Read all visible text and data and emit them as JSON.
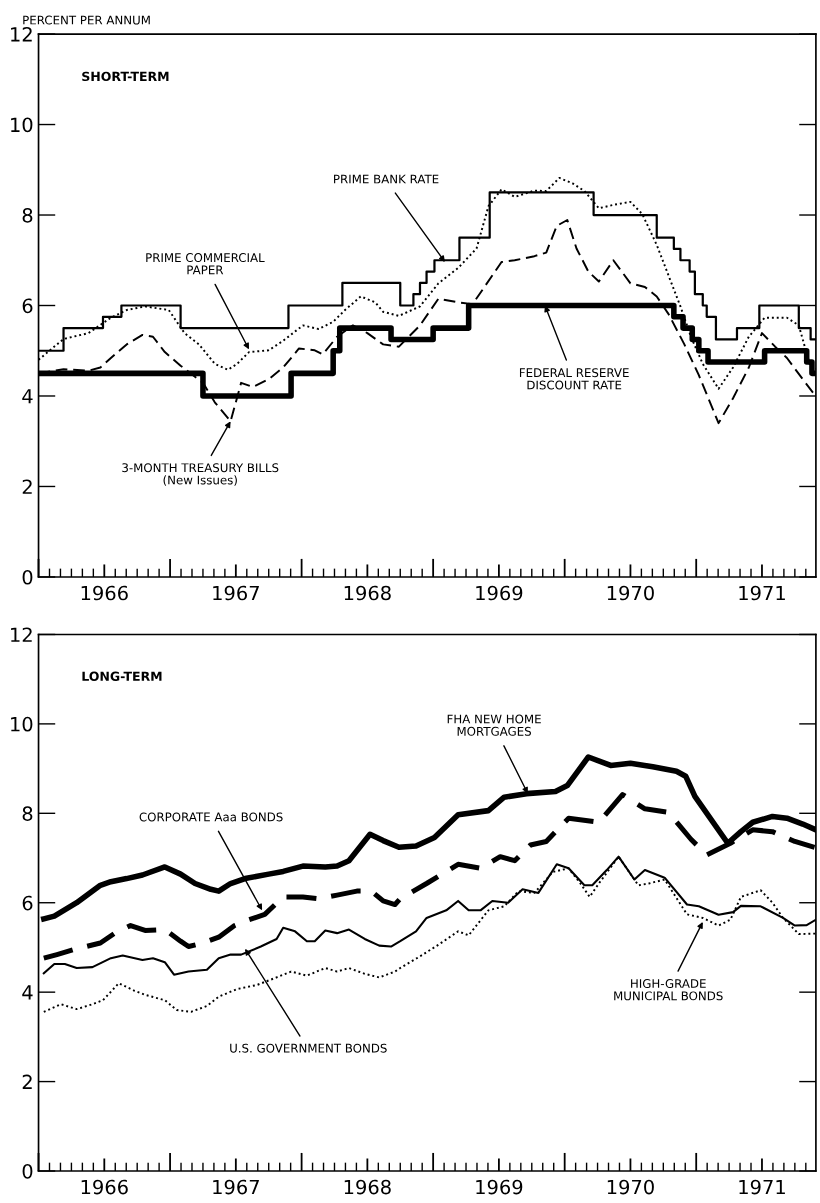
{
  "chart_data": [
    {
      "type": "line",
      "title": "SHORT-TERM",
      "ylabel": "PERCENT PER ANNUM",
      "xlim": [
        1966.0,
        1971.91
      ],
      "ylim": [
        0,
        12
      ],
      "yticks": [
        0,
        2,
        4,
        6,
        8,
        10,
        12
      ],
      "xticks": [
        {
          "value": 1966.5,
          "label": "1966"
        },
        {
          "value": 1967.5,
          "label": "1967"
        },
        {
          "value": 1968.5,
          "label": "1968"
        },
        {
          "value": 1969.5,
          "label": "1969"
        },
        {
          "value": 1970.5,
          "label": "1970"
        },
        {
          "value": 1971.5,
          "label": "1971"
        }
      ],
      "grid": false,
      "legend": false,
      "series": [
        {
          "type": "step",
          "color": "#000000",
          "line_style": "solid",
          "x": [
            1966.0,
            1966.19,
            1966.49,
            1966.63,
            1967.08,
            1967.9,
            1968.31,
            1968.75,
            1968.85,
            1968.9,
            1968.95,
            1969.01,
            1969.2,
            1969.43,
            1970.22,
            1970.7,
            1970.83,
            1970.88,
            1970.95,
            1970.99,
            1971.05,
            1971.08,
            1971.15,
            1971.31,
            1971.48,
            1971.78,
            1971.87,
            1971.91
          ],
          "values": [
            5.0,
            5.5,
            5.75,
            6.0,
            5.5,
            6.0,
            6.5,
            6.0,
            6.25,
            6.5,
            6.75,
            7.0,
            7.5,
            8.5,
            8.0,
            7.5,
            7.25,
            7.0,
            6.75,
            6.25,
            6.0,
            5.75,
            5.25,
            5.5,
            6.0,
            5.5,
            5.25,
            5.25
          ]
        },
        {
          "type": "step",
          "color": "#000000",
          "line_style": "solid",
          "x": [
            1966.0,
            1967.25,
            1967.92,
            1968.24,
            1968.29,
            1968.68,
            1969.0,
            1969.27,
            1970.83,
            1970.9,
            1970.97,
            1971.02,
            1971.09,
            1971.52,
            1971.84,
            1971.88,
            1971.91
          ],
          "values": [
            4.5,
            4.0,
            4.5,
            5.0,
            5.5,
            5.25,
            5.5,
            6.0,
            5.75,
            5.5,
            5.25,
            5.0,
            4.75,
            5.0,
            4.75,
            4.5,
            4.5
          ]
        },
        {
          "color": "#000000",
          "line_style": "dotted",
          "x": [
            1966.0,
            1966.19,
            1966.38,
            1966.55,
            1966.67,
            1966.81,
            1966.99,
            1967.11,
            1967.22,
            1967.34,
            1967.44,
            1967.51,
            1967.6,
            1967.75,
            1967.86,
            1968.01,
            1968.13,
            1968.24,
            1968.33,
            1968.45,
            1968.56,
            1968.62,
            1968.74,
            1968.9,
            1969.04,
            1969.19,
            1969.33,
            1969.42,
            1969.52,
            1969.62,
            1969.77,
            1969.86,
            1969.96,
            1970.06,
            1970.15,
            1970.26,
            1970.38,
            1970.5,
            1970.59,
            1970.7,
            1970.79,
            1970.88,
            1970.96,
            1971.05,
            1971.17,
            1971.28,
            1971.4,
            1971.52,
            1971.69,
            1971.78,
            1971.87,
            1971.91
          ],
          "values": [
            4.8,
            5.26,
            5.39,
            5.73,
            5.9,
            5.98,
            5.9,
            5.39,
            5.14,
            4.71,
            4.58,
            4.71,
            4.97,
            5.01,
            5.22,
            5.56,
            5.48,
            5.64,
            5.9,
            6.2,
            6.07,
            5.86,
            5.77,
            5.98,
            6.49,
            6.83,
            7.26,
            8.19,
            8.57,
            8.4,
            8.54,
            8.53,
            8.82,
            8.7,
            8.53,
            8.15,
            8.23,
            8.29,
            8.02,
            7.34,
            6.66,
            5.98,
            5.31,
            4.71,
            4.16,
            4.63,
            5.31,
            5.73,
            5.73,
            5.56,
            4.63,
            4.6
          ]
        },
        {
          "color": "#000000",
          "line_style": "dashed",
          "x": [
            1966.0,
            1966.19,
            1966.38,
            1966.47,
            1966.55,
            1966.67,
            1966.79,
            1966.87,
            1966.96,
            1967.08,
            1967.25,
            1967.34,
            1967.46,
            1967.54,
            1967.63,
            1967.75,
            1967.86,
            1967.98,
            1968.1,
            1968.16,
            1968.27,
            1968.39,
            1968.5,
            1968.62,
            1968.74,
            1968.9,
            1969.04,
            1969.19,
            1969.3,
            1969.39,
            1969.52,
            1969.62,
            1969.77,
            1969.86,
            1969.94,
            1970.02,
            1970.09,
            1970.18,
            1970.26,
            1970.37,
            1970.5,
            1970.61,
            1970.7,
            1970.79,
            1970.91,
            1971.02,
            1971.17,
            1971.28,
            1971.4,
            1971.5,
            1971.6,
            1971.69,
            1971.81,
            1971.9
          ],
          "values": [
            4.5,
            4.59,
            4.56,
            4.63,
            4.84,
            5.14,
            5.35,
            5.31,
            4.97,
            4.67,
            4.29,
            3.86,
            3.44,
            4.29,
            4.2,
            4.37,
            4.63,
            5.05,
            5.01,
            4.92,
            5.31,
            5.56,
            5.39,
            5.14,
            5.09,
            5.56,
            6.15,
            6.07,
            6.03,
            6.41,
            6.96,
            7.0,
            7.09,
            7.17,
            7.76,
            7.89,
            7.26,
            6.75,
            6.53,
            7.0,
            6.49,
            6.41,
            6.2,
            5.81,
            5.14,
            4.46,
            3.4,
            3.95,
            4.63,
            5.39,
            5.09,
            4.84,
            4.37,
            4.03
          ]
        }
      ],
      "annotations": [
        {
          "text": "PRIME BANK RATE",
          "x": 1969.09,
          "y": 6.96
        },
        {
          "text": "PRIME COMMERCIAL\nPAPER",
          "x": 1967.6,
          "y": 5.03
        },
        {
          "text": "3-MONTH TREASURY BILLS\n(New Issues)",
          "x": 1967.46,
          "y": 3.44
        },
        {
          "text": "FEDERAL RESERVE\nDISCOUNT RATE",
          "x": 1969.85,
          "y": 6.0
        }
      ]
    },
    {
      "type": "line",
      "title": "LONG-TERM",
      "xlim": [
        1966.0,
        1971.91
      ],
      "ylim": [
        0,
        12
      ],
      "yticks": [
        0,
        2,
        4,
        6,
        8,
        10,
        12
      ],
      "xticks": [
        {
          "value": 1966.5,
          "label": "1966"
        },
        {
          "value": 1967.5,
          "label": "1967"
        },
        {
          "value": 1968.5,
          "label": "1968"
        },
        {
          "value": 1969.5,
          "label": "1969"
        },
        {
          "value": 1970.5,
          "label": "1970"
        },
        {
          "value": 1971.5,
          "label": "1971"
        }
      ],
      "grid": false,
      "legend": false,
      "series": [
        {
          "color": "#000000",
          "line_style": "solid",
          "x": [
            1966.04,
            1966.12,
            1966.29,
            1966.47,
            1966.55,
            1966.67,
            1966.79,
            1966.96,
            1967.08,
            1967.19,
            1967.31,
            1967.37,
            1967.46,
            1967.57,
            1967.75,
            1967.86,
            1968.01,
            1968.18,
            1968.27,
            1968.36,
            1968.52,
            1968.62,
            1968.74,
            1968.87,
            1969.01,
            1969.19,
            1969.42,
            1969.54,
            1969.71,
            1969.93,
            1970.02,
            1970.18,
            1970.35,
            1970.5,
            1970.67,
            1970.85,
            1970.92,
            1970.99,
            1971.24,
            1971.34,
            1971.43,
            1971.58,
            1971.69,
            1971.81,
            1971.91
          ],
          "values": [
            5.64,
            5.7,
            6.0,
            6.39,
            6.47,
            6.54,
            6.62,
            6.8,
            6.64,
            6.43,
            6.3,
            6.26,
            6.43,
            6.54,
            6.64,
            6.7,
            6.82,
            6.8,
            6.82,
            6.94,
            7.53,
            7.39,
            7.24,
            7.27,
            7.46,
            7.97,
            8.06,
            8.36,
            8.44,
            8.49,
            8.62,
            9.26,
            9.07,
            9.12,
            9.04,
            8.94,
            8.83,
            8.38,
            7.33,
            7.59,
            7.8,
            7.93,
            7.89,
            7.76,
            7.63
          ]
        },
        {
          "color": "#000000",
          "line_style": "dashed",
          "x": [
            1966.04,
            1966.14,
            1966.29,
            1966.47,
            1966.58,
            1966.7,
            1966.81,
            1966.96,
            1967.08,
            1967.14,
            1967.25,
            1967.37,
            1967.49,
            1967.6,
            1967.72,
            1967.86,
            1968.01,
            1968.13,
            1968.27,
            1968.42,
            1968.53,
            1968.62,
            1968.71,
            1968.75,
            1968.95,
            1969.19,
            1969.36,
            1969.51,
            1969.62,
            1969.74,
            1969.86,
            1970.03,
            1970.26,
            1970.44,
            1970.61,
            1970.79,
            1970.96,
            1971.08,
            1971.26,
            1971.43,
            1971.58,
            1971.75,
            1971.9
          ],
          "values": [
            4.76,
            4.84,
            4.97,
            5.1,
            5.32,
            5.49,
            5.38,
            5.4,
            5.14,
            5.02,
            5.1,
            5.23,
            5.49,
            5.62,
            5.74,
            6.13,
            6.13,
            6.09,
            6.17,
            6.26,
            6.26,
            6.04,
            5.96,
            6.09,
            6.43,
            6.86,
            6.77,
            7.03,
            6.94,
            7.29,
            7.37,
            7.89,
            7.8,
            8.42,
            8.1,
            8.02,
            7.42,
            7.07,
            7.33,
            7.63,
            7.59,
            7.37,
            7.24
          ]
        },
        {
          "color": "#000000",
          "line_style": "solid",
          "x": [
            1966.04,
            1966.12,
            1966.2,
            1966.29,
            1966.41,
            1966.55,
            1966.64,
            1966.79,
            1966.87,
            1966.96,
            1967.03,
            1967.14,
            1967.28,
            1967.37,
            1967.46,
            1967.54,
            1967.69,
            1967.81,
            1967.86,
            1967.95,
            1968.04,
            1968.1,
            1968.18,
            1968.27,
            1968.36,
            1968.48,
            1968.59,
            1968.68,
            1968.75,
            1968.87,
            1968.95,
            1969.1,
            1969.19,
            1969.27,
            1969.36,
            1969.45,
            1969.57,
            1969.68,
            1969.8,
            1969.94,
            1970.03,
            1970.15,
            1970.21,
            1970.32,
            1970.41,
            1970.53,
            1970.61,
            1970.76,
            1970.93,
            1971.02,
            1971.17,
            1971.28,
            1971.34,
            1971.49,
            1971.66,
            1971.75,
            1971.84,
            1971.91
          ],
          "values": [
            4.42,
            4.63,
            4.63,
            4.54,
            4.56,
            4.76,
            4.82,
            4.72,
            4.76,
            4.67,
            4.39,
            4.46,
            4.5,
            4.76,
            4.84,
            4.84,
            5.02,
            5.19,
            5.44,
            5.36,
            5.14,
            5.14,
            5.38,
            5.32,
            5.4,
            5.19,
            5.04,
            5.02,
            5.14,
            5.36,
            5.66,
            5.83,
            6.04,
            5.83,
            5.83,
            6.04,
            6.0,
            6.3,
            6.22,
            6.86,
            6.77,
            6.39,
            6.39,
            6.73,
            7.03,
            6.52,
            6.73,
            6.56,
            5.96,
            5.92,
            5.73,
            5.79,
            5.93,
            5.92,
            5.66,
            5.49,
            5.5,
            5.62
          ]
        },
        {
          "color": "#000000",
          "line_style": "dotted",
          "x": [
            1966.04,
            1966.17,
            1966.29,
            1966.41,
            1966.49,
            1966.61,
            1966.73,
            1966.81,
            1966.96,
            1967.05,
            1967.16,
            1967.28,
            1967.37,
            1967.51,
            1967.66,
            1967.81,
            1967.92,
            1968.04,
            1968.18,
            1968.27,
            1968.36,
            1968.48,
            1968.59,
            1968.71,
            1968.75,
            1968.9,
            1969.04,
            1969.19,
            1969.27,
            1969.42,
            1969.54,
            1969.65,
            1969.77,
            1969.91,
            1970.03,
            1970.12,
            1970.19,
            1970.26,
            1970.41,
            1970.56,
            1970.64,
            1970.76,
            1970.93,
            1971.05,
            1971.17,
            1971.26,
            1971.34,
            1971.49,
            1971.58,
            1971.66,
            1971.78,
            1971.91
          ],
          "values": [
            3.56,
            3.73,
            3.62,
            3.73,
            3.82,
            4.2,
            4.03,
            3.94,
            3.82,
            3.6,
            3.56,
            3.69,
            3.9,
            4.07,
            4.16,
            4.33,
            4.46,
            4.37,
            4.54,
            4.46,
            4.54,
            4.41,
            4.33,
            4.46,
            4.54,
            4.8,
            5.06,
            5.36,
            5.27,
            5.83,
            5.92,
            6.26,
            6.22,
            6.69,
            6.77,
            6.43,
            6.13,
            6.43,
            7.03,
            6.39,
            6.43,
            6.52,
            5.74,
            5.66,
            5.49,
            5.62,
            6.13,
            6.28,
            6.0,
            5.66,
            5.3,
            5.31
          ]
        }
      ],
      "annotations": [
        {
          "text": "FHA NEW HOME\nMORTGAGES",
          "x": 1969.72,
          "y": 8.44
        },
        {
          "text": "CORPORATE Aaa BONDS",
          "x": 1967.7,
          "y": 5.83
        },
        {
          "text": "U.S. GOVERNMENT BONDS",
          "x": 1967.57,
          "y": 4.97
        },
        {
          "text": "HIGH-GRADE\nMUNICIPAL BONDS",
          "x": 1971.05,
          "y": 5.57
        }
      ]
    }
  ]
}
